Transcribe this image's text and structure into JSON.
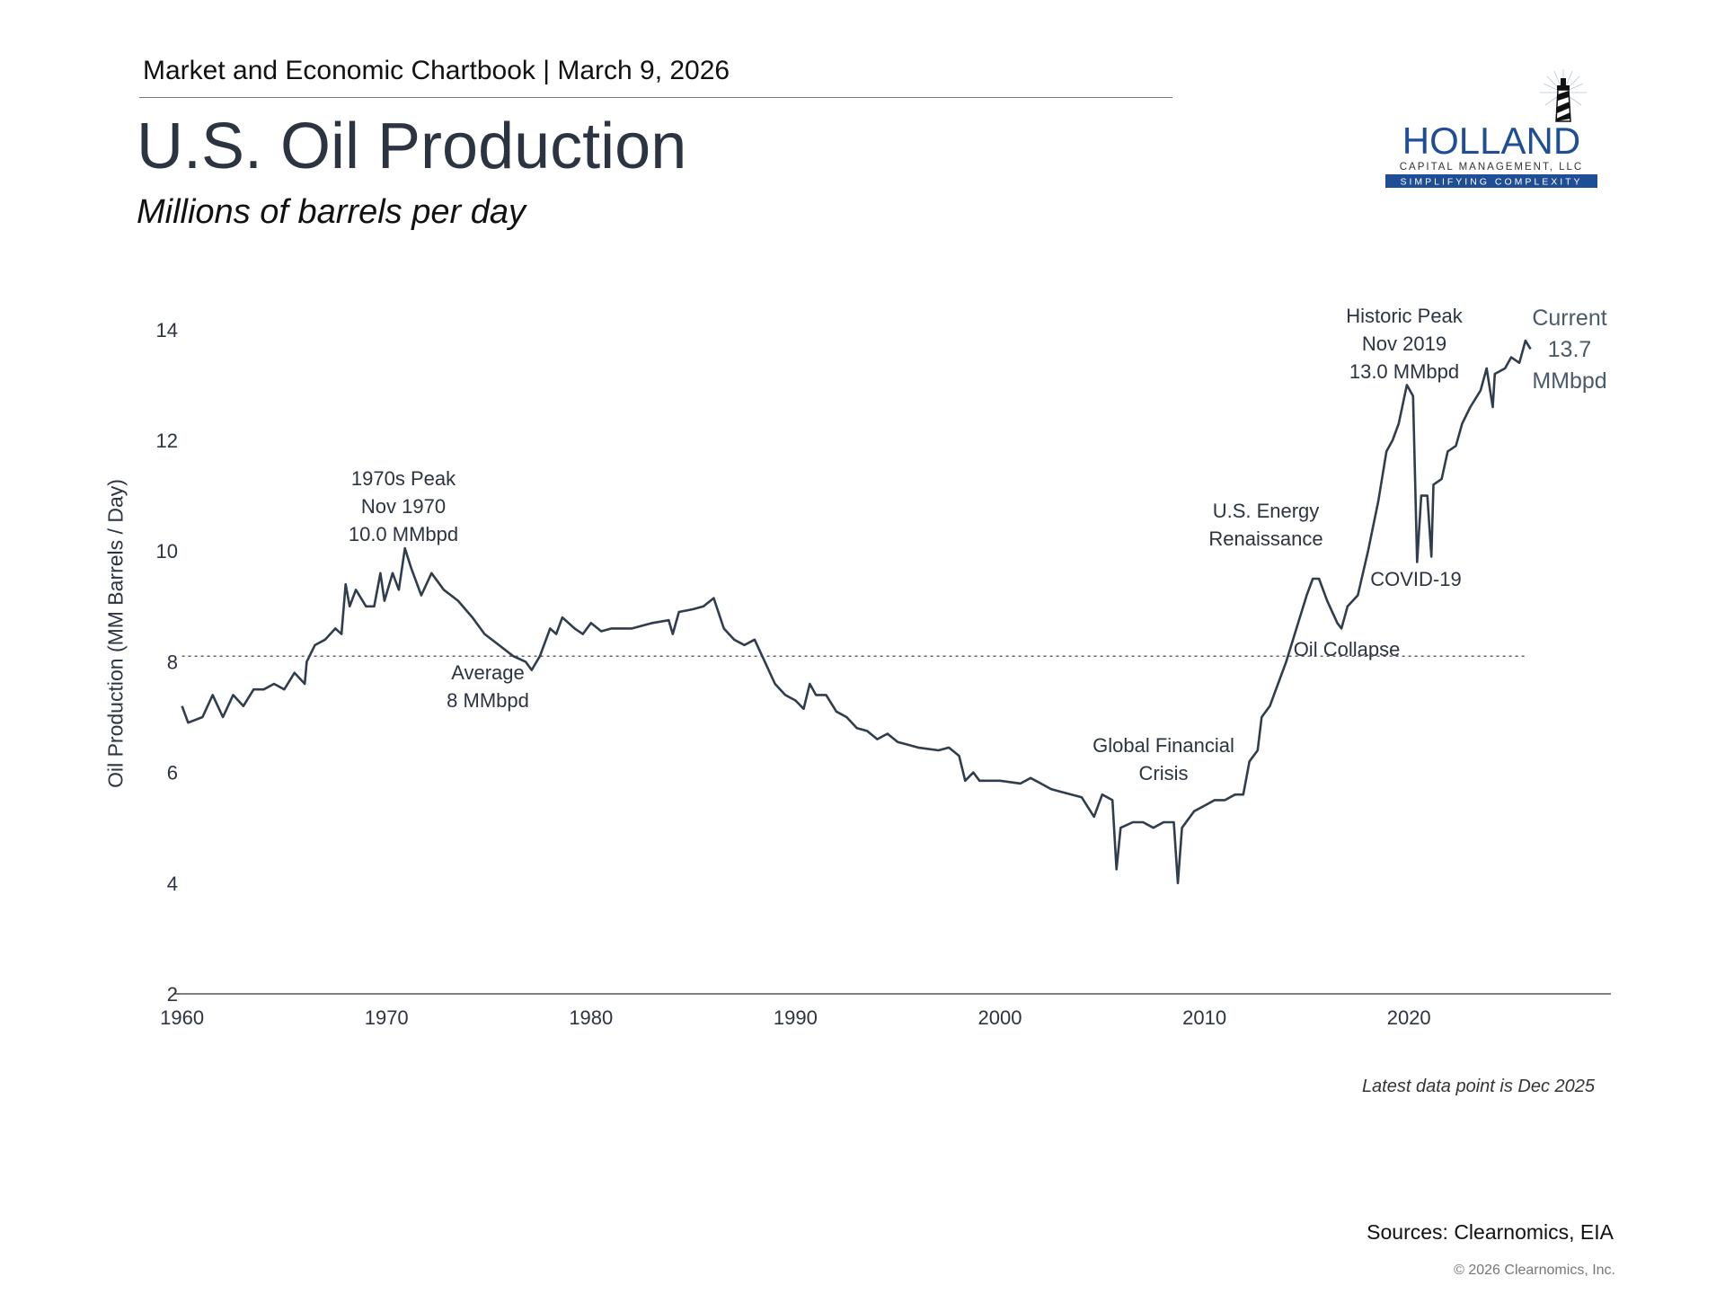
{
  "header": {
    "chartbook": "Market and Economic Chartbook | March 9, 2026",
    "title": "U.S. Oil Production",
    "subtitle": "Millions of barrels per day"
  },
  "logo": {
    "name": "HOLLAND",
    "line2": "CAPITAL MANAGEMENT, LLC",
    "tagline": "SIMPLIFYING COMPLEXITY",
    "brand_color": "#1f4e96"
  },
  "chart_data": {
    "type": "line",
    "title": "U.S. Oil Production",
    "ylabel": "Oil Production (MM Barrels / Day)",
    "xlabel": "",
    "xlim": [
      1960,
      2030
    ],
    "ylim": [
      2,
      14
    ],
    "x_ticks": [
      "1960",
      "1970",
      "1980",
      "1990",
      "2000",
      "2010",
      "2020"
    ],
    "y_ticks": [
      "2",
      "4",
      "6",
      "8",
      "10",
      "12",
      "14"
    ],
    "line_color": "#2f3d4c",
    "grid": false,
    "average": {
      "value": 8.1,
      "style": "dotted"
    },
    "series": [
      {
        "x": [
          1960,
          1960.3,
          1961,
          1961.5,
          1962,
          1962.5,
          1963,
          1963.5,
          1964,
          1964.5,
          1965,
          1965.5,
          1966,
          1966.1,
          1966.5,
          1967,
          1967.5,
          1967.8,
          1968,
          1968.2,
          1968.5,
          1969,
          1969.4,
          1969.7,
          1969.9,
          1970.3,
          1970.6,
          1970.9,
          1971.2,
          1971.7,
          1972.2,
          1972.8,
          1973.5,
          1974.2,
          1974.8,
          1975.5,
          1976.2,
          1976.8,
          1977.1,
          1977.5,
          1978,
          1978.3,
          1978.6,
          1979.2,
          1979.6,
          1980,
          1980.5,
          1981,
          1982,
          1983,
          1983.8,
          1984,
          1984.3,
          1985,
          1985.5,
          1986,
          1986.5,
          1987,
          1987.5,
          1988,
          1988.5,
          1989,
          1989.5,
          1990,
          1990.4,
          1990.7,
          1991,
          1991.5,
          1992,
          1992.5,
          1993,
          1993.5,
          1994,
          1994.5,
          1995,
          1995.5,
          1996,
          1997,
          1997.5,
          1998,
          1998.3,
          1998.7,
          1999,
          2000,
          2001,
          2001.5,
          2002,
          2002.5,
          2003,
          2003.5,
          2004,
          2004.6,
          2005,
          2005.5,
          2005.7,
          2005.9,
          2006.5,
          2007,
          2007.5,
          2008,
          2008.5,
          2008.7,
          2008.9,
          2009.5,
          2010,
          2010.5,
          2011,
          2011.5,
          2011.9,
          2012.2,
          2012.6,
          2012.8,
          2013.2,
          2013.6,
          2014,
          2014.5,
          2015,
          2015.3,
          2015.6,
          2016,
          2016.5,
          2016.7,
          2017,
          2017.5,
          2018,
          2018.5,
          2018.9,
          2019.2,
          2019.5,
          2019.9,
          2020.2,
          2020.4,
          2020.6,
          2020.9,
          2021.1,
          2021.2,
          2021.6,
          2021.9,
          2022.3,
          2022.6,
          2023,
          2023.5,
          2023.8,
          2024.1,
          2024.2,
          2024.7,
          2025,
          2025.4,
          2025.7,
          2025.95
        ],
        "y": [
          7.2,
          6.9,
          7.0,
          7.4,
          7.0,
          7.4,
          7.2,
          7.5,
          7.5,
          7.6,
          7.5,
          7.8,
          7.6,
          8.0,
          8.3,
          8.4,
          8.6,
          8.5,
          9.4,
          9.0,
          9.3,
          9.0,
          9.0,
          9.6,
          9.1,
          9.6,
          9.3,
          10.05,
          9.7,
          9.2,
          9.6,
          9.3,
          9.1,
          8.8,
          8.5,
          8.3,
          8.1,
          8.0,
          7.85,
          8.1,
          8.6,
          8.5,
          8.8,
          8.6,
          8.5,
          8.7,
          8.55,
          8.6,
          8.6,
          8.7,
          8.75,
          8.5,
          8.9,
          8.95,
          9.0,
          9.15,
          8.6,
          8.4,
          8.3,
          8.4,
          8.0,
          7.6,
          7.4,
          7.3,
          7.15,
          7.6,
          7.4,
          7.4,
          7.1,
          7.0,
          6.8,
          6.75,
          6.6,
          6.7,
          6.55,
          6.5,
          6.45,
          6.4,
          6.45,
          6.3,
          5.85,
          6.0,
          5.85,
          5.85,
          5.8,
          5.9,
          5.8,
          5.7,
          5.65,
          5.6,
          5.55,
          5.2,
          5.6,
          5.5,
          4.25,
          5.0,
          5.1,
          5.1,
          5.0,
          5.1,
          5.1,
          4.0,
          5.0,
          5.3,
          5.4,
          5.5,
          5.5,
          5.6,
          5.6,
          6.2,
          6.4,
          7.0,
          7.2,
          7.6,
          8.0,
          8.6,
          9.2,
          9.5,
          9.5,
          9.1,
          8.7,
          8.6,
          9.0,
          9.2,
          10.0,
          10.9,
          11.8,
          12.0,
          12.3,
          13.0,
          12.8,
          9.8,
          11.0,
          11.0,
          9.9,
          11.2,
          11.3,
          11.8,
          11.9,
          12.3,
          12.6,
          12.9,
          13.3,
          12.6,
          13.2,
          13.3,
          13.5,
          13.4,
          13.8,
          13.65
        ]
      }
    ],
    "annotations": {
      "peak1970": [
        "1970s Peak",
        "Nov 1970",
        "10.0 MMbpd"
      ],
      "average": [
        "Average",
        "8 MMbpd"
      ],
      "gfc": [
        "Global Financial",
        "Crisis"
      ],
      "renaissance": [
        "U.S. Energy",
        "Renaissance"
      ],
      "collapse": "Oil Collapse",
      "peak2019": [
        "Historic Peak",
        "Nov 2019",
        "13.0 MMbpd"
      ],
      "covid": "COVID-19",
      "current": [
        "Current",
        "13.7",
        "MMbpd"
      ]
    }
  },
  "footer": {
    "latest": "Latest data point is Dec 2025",
    "sources": "Sources: Clearnomics, EIA",
    "copyright": "© 2026 Clearnomics, Inc."
  }
}
